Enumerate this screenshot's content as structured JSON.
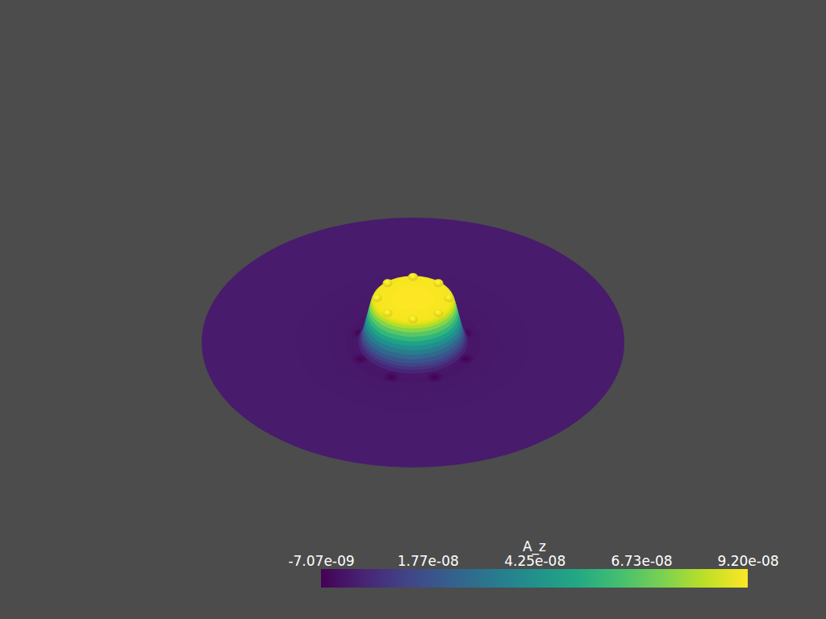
{
  "chart_data": {
    "type": "surface",
    "colorbar": {
      "title": "A_z",
      "range": [
        -7.07e-09,
        9.2e-08
      ],
      "ticks": [
        {
          "value": -7.07e-09,
          "label": "-7.07e-09"
        },
        {
          "value": 1.77e-08,
          "label": "1.77e-08"
        },
        {
          "value": 4.25e-08,
          "label": "4.25e-08"
        },
        {
          "value": 6.73e-08,
          "label": "6.73e-08"
        },
        {
          "value": 9.2e-08,
          "label": "9.20e-08"
        }
      ]
    },
    "profile": {
      "r": [
        0,
        0.05,
        0.1,
        0.15,
        0.18,
        0.19,
        0.195,
        0.2,
        0.205,
        0.21,
        0.215,
        0.22,
        0.225,
        0.23,
        0.235,
        0.24,
        0.245,
        0.25,
        0.26,
        0.28,
        0.32,
        0.4,
        0.55,
        0.75,
        1.0
      ],
      "values": [
        9.2e-08,
        9.2e-08,
        9.18e-08,
        9.12e-08,
        9.05e-08,
        8.9e-08,
        8.6e-08,
        8.1e-08,
        7.4e-08,
        6.6e-08,
        5.8e-08,
        5e-08,
        4.2e-08,
        3.4e-08,
        2.6e-08,
        1.9e-08,
        1.3e-08,
        8e-09,
        3e-09,
        -1e-09,
        -1.5e-09,
        -8e-10,
        -3e-10,
        -1e-10,
        0
      ]
    },
    "peaks": {
      "r": 0.17,
      "value": 9.2e-08,
      "angle_deg": [
        0,
        45,
        90,
        135,
        180,
        225,
        270,
        315
      ]
    },
    "dips": {
      "r": 0.27,
      "value": -7.07e-09,
      "angle_deg": [
        22.5,
        67.5,
        112.5,
        157.5,
        202.5,
        247.5,
        292.5,
        337.5
      ]
    }
  }
}
